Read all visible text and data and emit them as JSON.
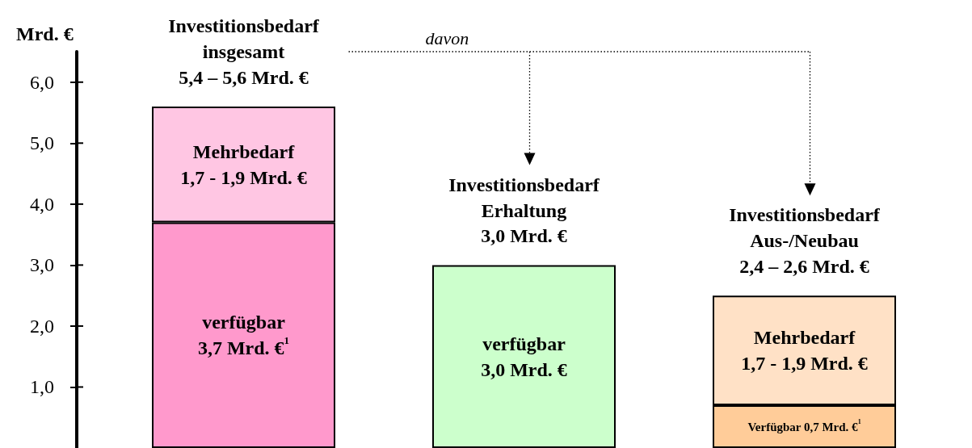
{
  "chart_data": {
    "type": "bar",
    "stacked": true,
    "ylabel": "Mrd. €",
    "categories": [
      null,
      null,
      null
    ],
    "series": [
      {
        "colors": [
          "#ff99cc",
          "#ccffcc",
          "#ffcc99"
        ],
        "values": [
          3.7,
          3.0,
          0.7
        ],
        "value_labels": [
          "verfügbar\n3,7 Mrd. €$^{1}$",
          "verfügbar\n3,0 Mrd. €",
          "Verfügbar 0,7 Mrd. €$^{1}$"
        ]
      },
      {
        "colors": [
          "#ffc6e3",
          "#ffffff",
          "#ffe1c6"
        ],
        "values": [
          1.9,
          null,
          1.8
        ],
        "value_labels": [
          "Mehrbedarf\n1,7 - 1,9 Mrd. €",
          null,
          "Mehrbedarf\n1,7 - 1,9 Mrd. €"
        ]
      }
    ],
    "totals": [
      "Investitionsbedarf\ninsgesamt\n5,4 – 5,6 Mrd. €",
      "Investitionsbedarf\nErhaltung\n3,0 Mrd. €",
      "Investitionsbedarf\nAus-/Neubau\n2,4 – 2,6 Mrd. €"
    ],
    "annotations": [
      "davon"
    ],
    "ylim": [
      0,
      6.5
    ],
    "yticks": [
      {
        "value": 1,
        "label": "1,0"
      },
      {
        "value": 2,
        "label": "2,0"
      },
      {
        "value": 3,
        "label": "3,0"
      },
      {
        "value": 4,
        "label": "4,0"
      },
      {
        "value": 5,
        "label": "5,0"
      },
      {
        "value": 6,
        "label": "6,0"
      }
    ],
    "grid": false,
    "tick_labels": "y"
  }
}
